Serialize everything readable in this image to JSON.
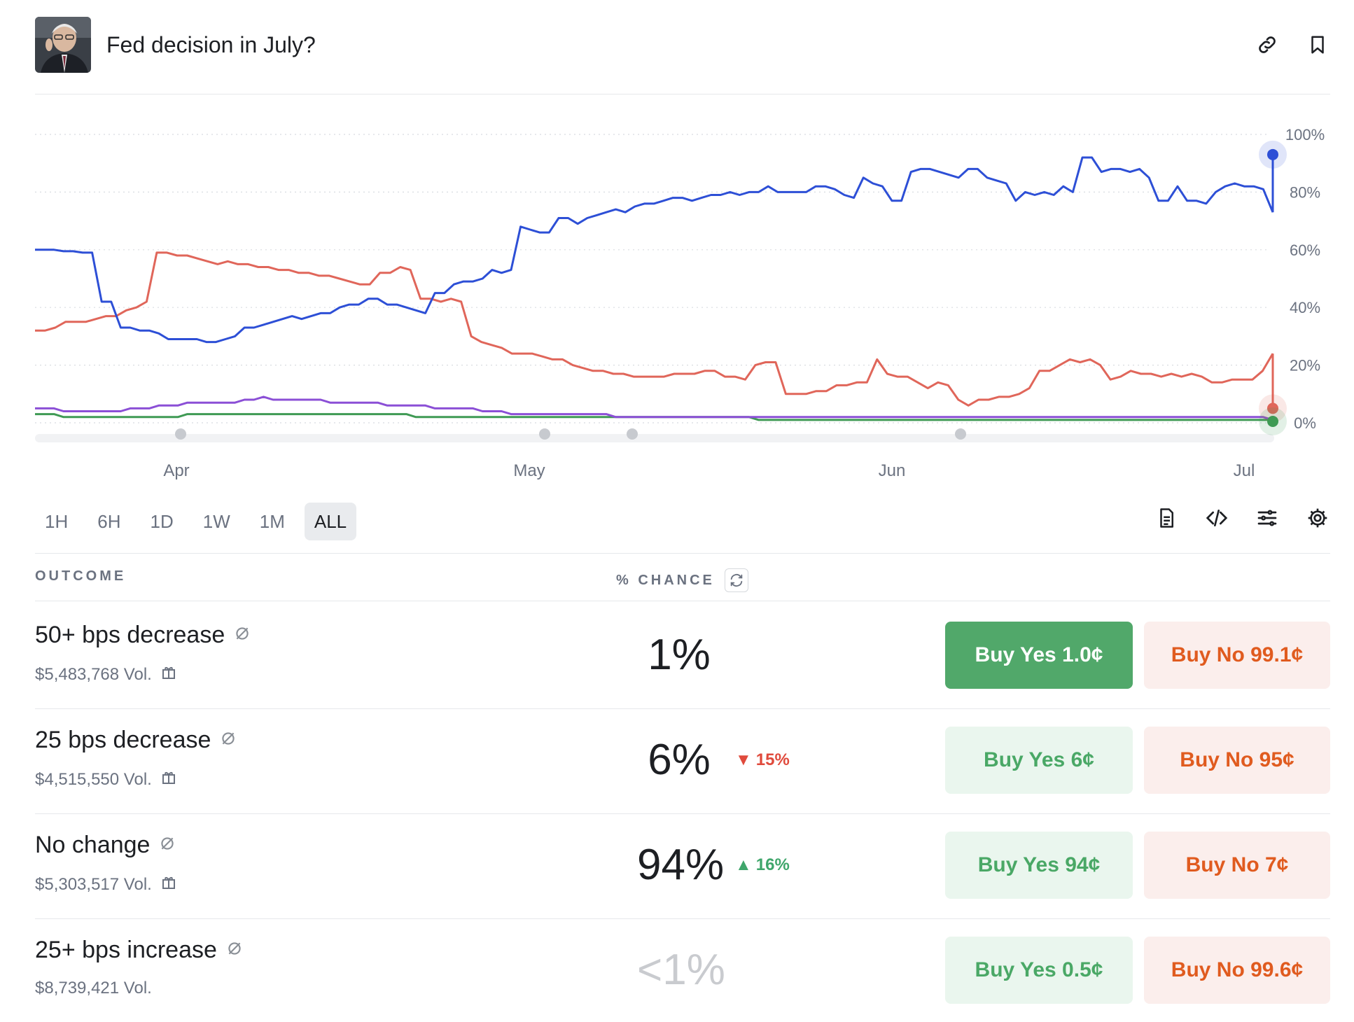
{
  "header": {
    "title": "Fed decision in July?",
    "avatar_icon": "person-portrait-icon",
    "actions": [
      "link-icon",
      "bookmark-icon"
    ]
  },
  "chart_data": {
    "type": "line",
    "x_tick_labels": [
      "Apr",
      "May",
      "Jun",
      "Jul"
    ],
    "y_tick_labels": [
      "100%",
      "80%",
      "60%",
      "40%",
      "20%",
      "0%"
    ],
    "ylim": [
      0,
      100
    ],
    "grid": true,
    "series": [
      {
        "color": "#2d4fd6",
        "values": [
          60,
          60,
          60,
          59.5,
          59.5,
          59,
          59,
          42,
          42,
          33,
          33,
          32,
          32,
          31,
          29,
          29,
          29,
          29,
          28,
          28,
          29,
          30,
          33,
          33,
          34,
          35,
          36,
          37,
          36,
          37,
          38,
          38,
          40,
          41,
          41,
          43,
          43,
          41,
          41,
          40,
          39,
          38,
          45,
          45,
          48,
          49,
          49,
          50,
          53,
          52,
          53,
          68,
          67,
          66,
          66,
          71,
          71,
          69,
          71,
          72,
          73,
          74,
          73,
          75,
          76,
          76,
          77,
          78,
          78,
          77,
          78,
          79,
          79,
          80,
          79,
          80,
          80,
          82,
          80,
          80,
          80,
          80,
          82,
          82,
          81,
          79,
          78,
          85,
          83,
          82,
          77,
          77,
          87,
          88,
          88,
          87,
          86,
          85,
          88,
          88,
          85,
          84,
          83,
          77,
          80,
          79,
          80,
          79,
          82,
          80,
          92,
          92,
          87,
          88,
          88,
          87,
          88,
          85,
          77,
          77,
          82,
          77,
          77,
          76,
          80,
          82,
          83,
          82,
          82,
          81,
          73
        ]
      },
      {
        "color": "#e0665a",
        "values": [
          32,
          32,
          33,
          35,
          35,
          35,
          36,
          37,
          37,
          39,
          40,
          42,
          59,
          59,
          58,
          58,
          57,
          56,
          55,
          56,
          55,
          55,
          54,
          54,
          53,
          53,
          52,
          52,
          51,
          51,
          50,
          49,
          48,
          48,
          52,
          52,
          54,
          53,
          43,
          43,
          42,
          43,
          42,
          30,
          28,
          27,
          26,
          24,
          24,
          24,
          23,
          22,
          22,
          20,
          19,
          18,
          18,
          17,
          17,
          16,
          16,
          16,
          16,
          17,
          17,
          17,
          18,
          18,
          16,
          16,
          15,
          20,
          21,
          21,
          10,
          10,
          10,
          11,
          11,
          13,
          13,
          14,
          14,
          22,
          17,
          16,
          16,
          14,
          12,
          14,
          13,
          8,
          6,
          8,
          8,
          9,
          9,
          10,
          12,
          18,
          18,
          20,
          22,
          21,
          22,
          20,
          15,
          16,
          18,
          17,
          17,
          16,
          17,
          16,
          17,
          16,
          14,
          14,
          15,
          15,
          15,
          18,
          24
        ]
      },
      {
        "color": "#8b4fd6",
        "values": [
          5,
          5,
          5,
          4,
          4,
          4,
          4,
          4,
          4,
          4,
          5,
          5,
          5,
          6,
          6,
          6,
          7,
          7,
          7,
          7,
          7,
          7,
          8,
          8,
          9,
          8,
          8,
          8,
          8,
          8,
          8,
          7,
          7,
          7,
          7,
          7,
          7,
          6,
          6,
          6,
          6,
          6,
          5,
          5,
          5,
          5,
          5,
          4,
          4,
          4,
          3,
          3,
          3,
          3,
          3,
          3,
          3,
          3,
          3,
          3,
          3,
          2,
          2,
          2,
          2,
          2,
          2,
          2,
          2,
          2,
          2,
          2,
          2,
          2,
          2,
          2,
          2,
          2,
          2,
          2,
          2,
          2,
          2,
          2,
          2,
          2,
          2,
          2,
          2,
          2,
          2,
          2,
          2,
          2,
          2,
          2,
          2,
          2,
          2,
          2,
          2,
          2,
          2,
          2,
          2,
          2,
          2,
          2,
          2,
          2,
          2,
          2,
          2,
          2,
          2,
          2,
          2,
          2,
          2,
          2,
          2,
          2,
          2,
          2,
          2,
          2,
          2,
          2,
          2,
          2,
          1
        ]
      },
      {
        "color": "#3f9a54",
        "values": [
          3,
          3,
          3,
          2,
          2,
          2,
          2,
          2,
          2,
          2,
          2,
          2,
          2,
          2,
          2,
          2,
          3,
          3,
          3,
          3,
          3,
          3,
          3,
          3,
          3,
          3,
          3,
          3,
          3,
          3,
          3,
          3,
          3,
          3,
          3,
          3,
          3,
          3,
          3,
          3,
          2,
          2,
          2,
          2,
          2,
          2,
          2,
          2,
          2,
          2,
          2,
          2,
          2,
          2,
          2,
          2,
          2,
          2,
          2,
          2,
          2,
          2,
          2,
          2,
          2,
          2,
          2,
          2,
          2,
          2,
          2,
          2,
          2,
          2,
          2,
          2,
          1,
          1,
          1,
          1,
          1,
          1,
          1,
          1,
          1,
          1,
          1,
          1,
          1,
          1,
          1,
          1,
          1,
          1,
          1,
          1,
          1,
          1,
          1,
          1,
          1,
          1,
          1,
          1,
          1,
          1,
          1,
          1,
          1,
          1,
          1,
          1,
          1,
          1,
          1,
          1,
          1,
          1,
          1,
          1,
          1,
          1,
          1,
          1,
          1,
          1,
          1,
          1,
          1,
          1,
          1
        ]
      }
    ]
  },
  "time_ranges": [
    "1H",
    "6H",
    "1D",
    "1W",
    "1M",
    "ALL"
  ],
  "active_range": "ALL",
  "tools": [
    "document-icon",
    "code-icon",
    "sliders-icon",
    "gear-icon"
  ],
  "table": {
    "col_outcome": "OUTCOME",
    "col_chance": "% CHANCE",
    "rows": [
      {
        "name": "50+ bps decrease",
        "vol": "$5,483,768 Vol.",
        "chance": "1%",
        "delta": "",
        "yes": "Buy Yes 1.0¢",
        "no": "Buy No 99.1¢"
      },
      {
        "name": "25 bps decrease",
        "vol": "$4,515,550 Vol.",
        "chance": "6%",
        "delta": "15%",
        "yes": "Buy Yes 6¢",
        "no": "Buy No 95¢"
      },
      {
        "name": "No change",
        "vol": "$5,303,517 Vol.",
        "chance": "94%",
        "delta": "16%",
        "yes": "Buy Yes 94¢",
        "no": "Buy No 7¢"
      },
      {
        "name": "25+ bps increase",
        "vol": "$8,739,421 Vol.",
        "chance": "<1%",
        "delta": "",
        "yes": "Buy Yes 0.5¢",
        "no": "Buy No 99.6¢"
      }
    ]
  }
}
